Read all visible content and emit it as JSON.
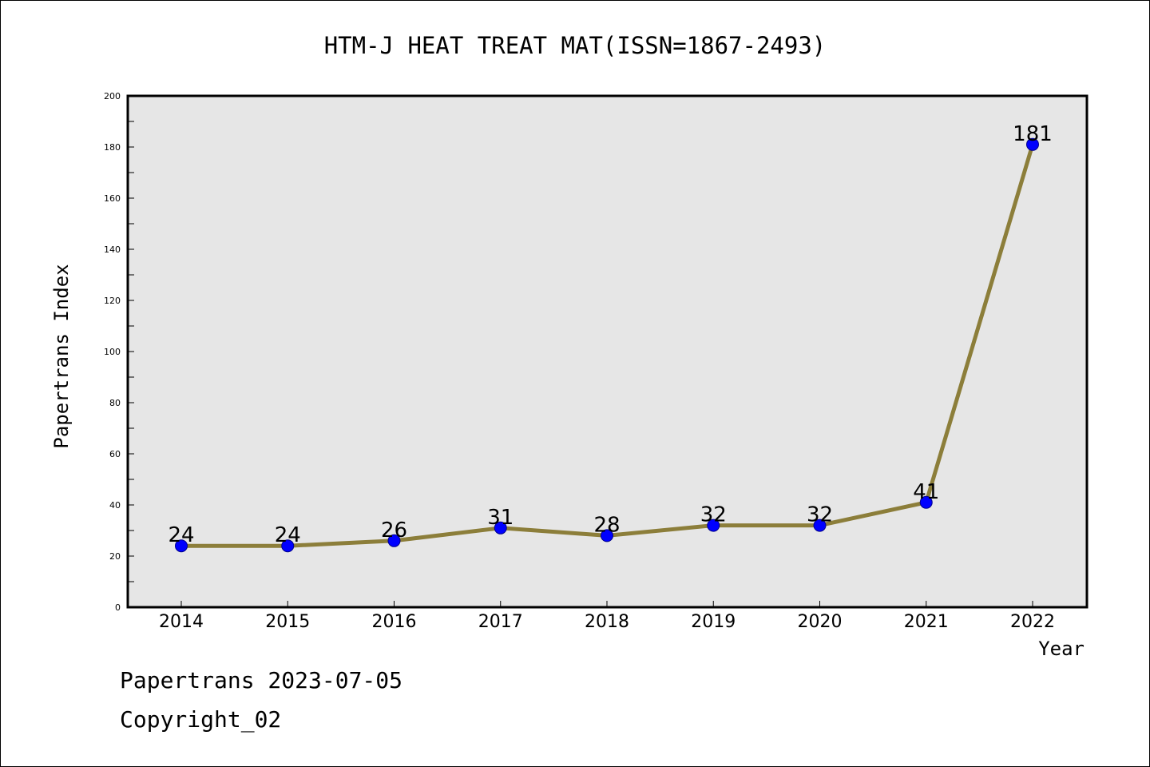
{
  "chart_data": {
    "type": "line",
    "title": "HTM-J HEAT TREAT MAT(ISSN=1867-2493)",
    "xlabel": "Year",
    "ylabel": "Papertrans Index",
    "categories": [
      "2014",
      "2015",
      "2016",
      "2017",
      "2018",
      "2019",
      "2020",
      "2021",
      "2022"
    ],
    "series": [
      {
        "values": [
          24,
          24,
          26,
          31,
          28,
          32,
          32,
          41,
          181
        ],
        "data_labels": [
          "24",
          "24",
          "26",
          "31",
          "28",
          "32",
          "32",
          "41",
          "181"
        ]
      }
    ],
    "ylim": [
      0,
      200
    ],
    "yticks": [
      "0",
      "20",
      "40",
      "60",
      "80",
      "100",
      "120",
      "140",
      "160",
      "180",
      "200"
    ],
    "grid": false,
    "legend": "none",
    "colors": {
      "plot_background": "#e6e6e6",
      "line": "#8c7e3a",
      "marker": "#0000ff",
      "marker_edge": "#00008b"
    }
  },
  "footer": {
    "line1": "Papertrans 2023-07-05",
    "line2": "Copyright_02"
  }
}
